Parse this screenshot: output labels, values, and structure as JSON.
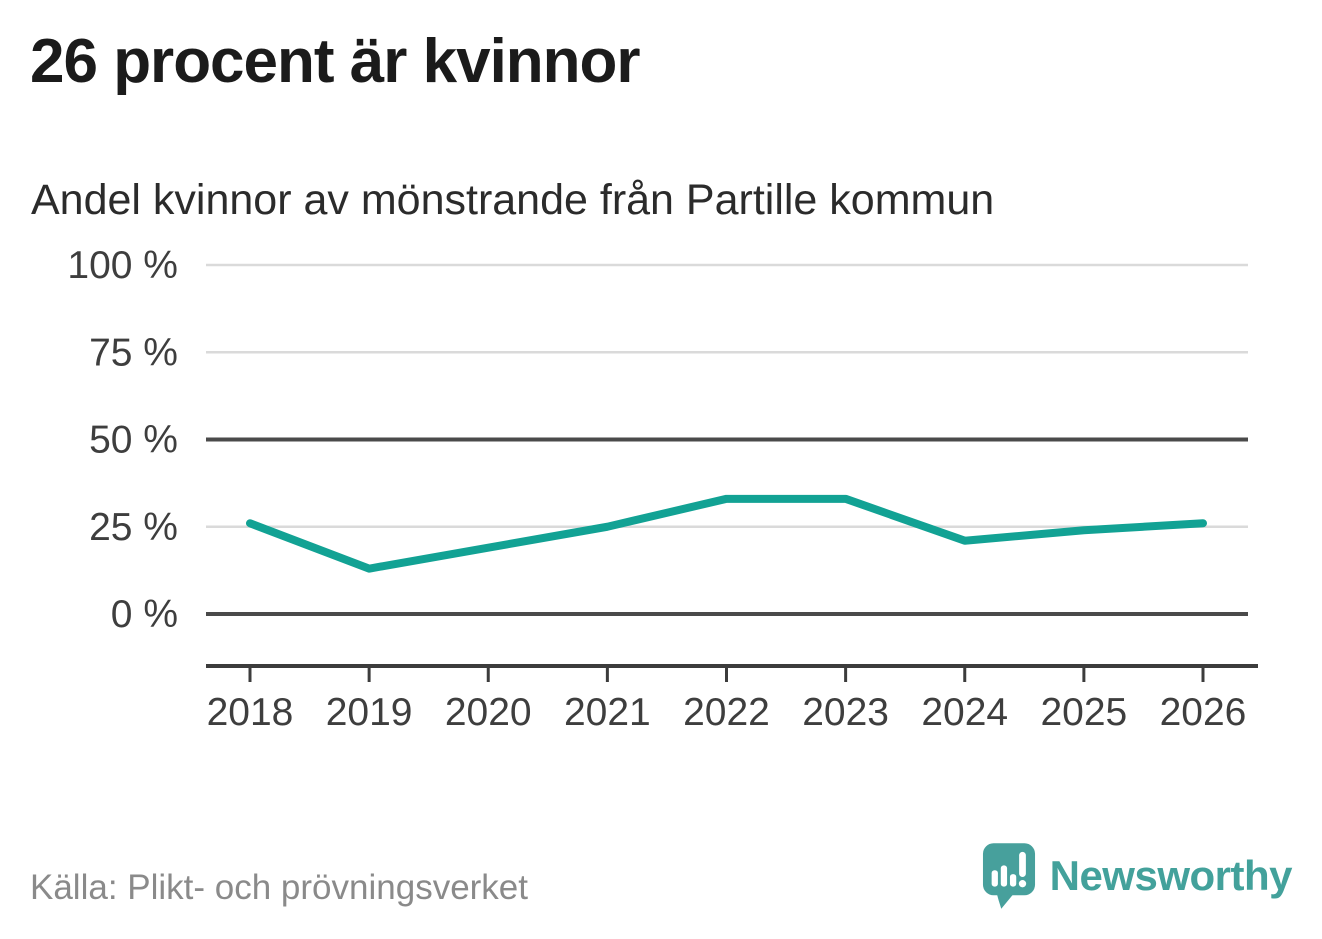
{
  "header": {
    "title": "26 procent är kvinnor",
    "subtitle": "Andel kvinnor av mönstrande från Partille kommun"
  },
  "chart_data": {
    "type": "line",
    "title": "26 procent är kvinnor",
    "subtitle": "Andel kvinnor av mönstrande från Partille kommun",
    "x": [
      "2018",
      "2019",
      "2020",
      "2021",
      "2022",
      "2023",
      "2024",
      "2025",
      "2026"
    ],
    "values": [
      26,
      13,
      19,
      25,
      33,
      33,
      21,
      24,
      26
    ],
    "ylim": [
      0,
      100
    ],
    "yticks": [
      0,
      25,
      50,
      75,
      100
    ],
    "ytick_suffix": " %",
    "emphasized_gridlines": [
      0,
      50
    ],
    "grid": true,
    "legend": false,
    "line_color": "#12a294",
    "xlabel": "",
    "ylabel": ""
  },
  "footer": {
    "source": "Källa: Plikt- och prövningsverket",
    "brand": "Newsworthy",
    "logo_icon": "speech-bubble-bar-chart-icon"
  },
  "colors": {
    "accent": "#12a294",
    "brand": "#43a19b",
    "title": "#1b1b1b",
    "subtitle": "#2b2b2b",
    "axis_label": "#3e3e3e",
    "axis": "#3c3c3c",
    "grid_light": "#dadada",
    "grid_dark": "#4a4a4a",
    "source": "#8a8a8a",
    "background": "#ffffff"
  }
}
